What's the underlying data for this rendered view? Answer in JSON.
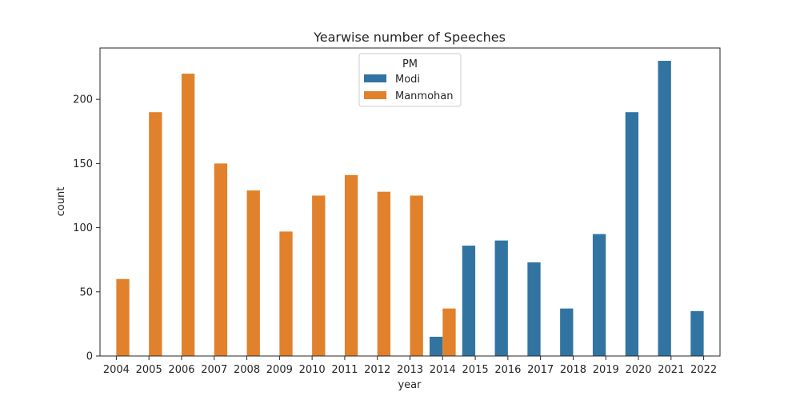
{
  "chart_data": {
    "type": "bar",
    "title": "Yearwise number of Speeches",
    "xlabel": "year",
    "ylabel": "count",
    "ylim": [
      0,
      240
    ],
    "yticks": [
      0,
      50,
      100,
      150,
      200
    ],
    "categories": [
      "2004",
      "2005",
      "2006",
      "2007",
      "2008",
      "2009",
      "2010",
      "2011",
      "2012",
      "2013",
      "2014",
      "2015",
      "2016",
      "2017",
      "2018",
      "2019",
      "2020",
      "2021",
      "2022"
    ],
    "legend": {
      "title": "PM",
      "placement": "top-center"
    },
    "series": [
      {
        "name": "Modi",
        "color": "#3274a1",
        "values": [
          null,
          null,
          null,
          null,
          null,
          null,
          null,
          null,
          null,
          null,
          15,
          86,
          90,
          73,
          37,
          95,
          190,
          230,
          35
        ]
      },
      {
        "name": "Manmohan",
        "color": "#e1812c",
        "values": [
          60,
          190,
          220,
          150,
          129,
          97,
          125,
          141,
          128,
          125,
          37,
          null,
          null,
          null,
          null,
          null,
          null,
          null,
          null
        ]
      }
    ]
  }
}
